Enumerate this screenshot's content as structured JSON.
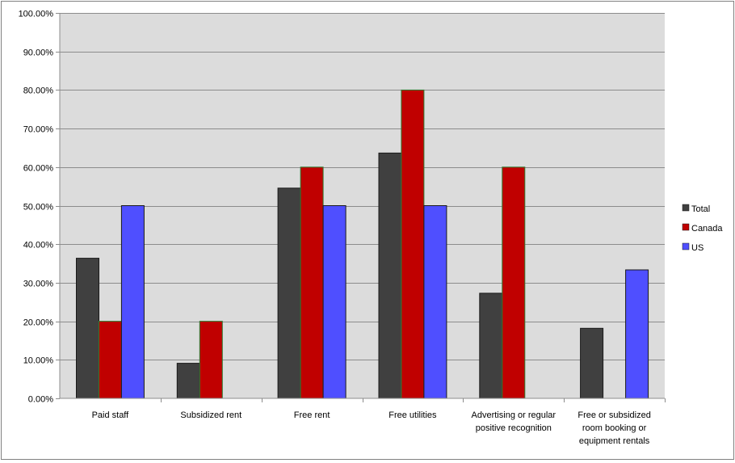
{
  "chart_data": {
    "type": "bar",
    "title": "",
    "xlabel": "",
    "ylabel": "",
    "categories": [
      [
        "Paid staff"
      ],
      [
        "Subsidized rent"
      ],
      [
        "Free rent"
      ],
      [
        "Free utilities"
      ],
      [
        "Advertising or regular",
        "positive recognition"
      ],
      [
        "Free or subsidized",
        "room booking or",
        "equipment rentals"
      ]
    ],
    "series": [
      {
        "name": "Total",
        "color": "#404040",
        "values": [
          0.3636,
          0.0909,
          0.5455,
          0.6364,
          0.2727,
          0.1818
        ]
      },
      {
        "name": "Canada",
        "color": "#c00000",
        "values": [
          0.2,
          0.2,
          0.6,
          0.8,
          0.6,
          0.0
        ]
      },
      {
        "name": "US",
        "color": "#4f4fff",
        "values": [
          0.5,
          0.0,
          0.5,
          0.5,
          0.0,
          0.3333
        ]
      }
    ],
    "ylim": [
      0,
      1
    ],
    "y_ticks": [
      "0.00%",
      "10.00%",
      "20.00%",
      "30.00%",
      "40.00%",
      "50.00%",
      "60.00%",
      "70.00%",
      "80.00%",
      "90.00%",
      "100.00%"
    ],
    "grid": true,
    "plot_background": "#dcdcdc",
    "legend_position": "right"
  }
}
